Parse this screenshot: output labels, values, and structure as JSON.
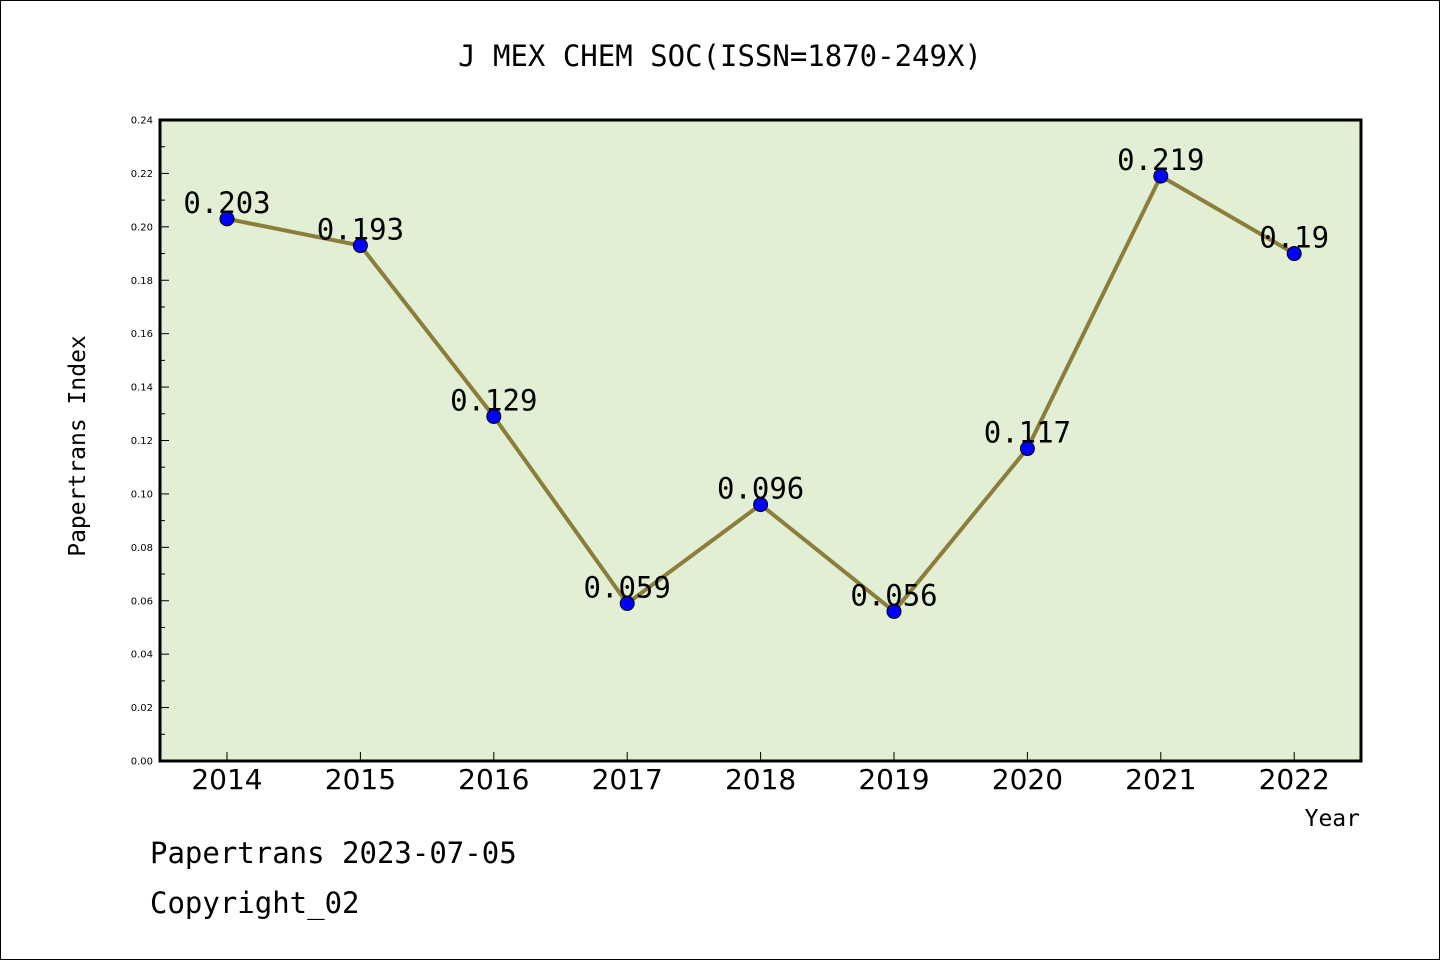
{
  "chart_data": {
    "type": "line",
    "title": "J MEX CHEM SOC(ISSN=1870-249X)",
    "xlabel": "Year",
    "ylabel": "Papertrans Index",
    "categories": [
      "2014",
      "2015",
      "2016",
      "2017",
      "2018",
      "2019",
      "2020",
      "2021",
      "2022"
    ],
    "series": [
      {
        "values": [
          0.203,
          0.193,
          0.129,
          0.059,
          0.096,
          0.056,
          0.117,
          0.219,
          0.19
        ],
        "data_labels": [
          "0.203",
          "0.193",
          "0.129",
          "0.059",
          "0.096",
          "0.056",
          "0.117",
          "0.219",
          "0.19"
        ]
      }
    ],
    "ylim": [
      0,
      0.24
    ],
    "yticks": [
      "0.00",
      "0.02",
      "0.04",
      "0.06",
      "0.08",
      "0.10",
      "0.12",
      "0.14",
      "0.16",
      "0.18",
      "0.20",
      "0.22",
      "0.24"
    ],
    "grid": false,
    "legend": "none",
    "colors": {
      "plot_background": "#e2efd4",
      "line": "#8b7d3a",
      "marker": "#0000ff",
      "axis": "#000000"
    }
  },
  "footer": {
    "date_text": "Papertrans 2023-07-05",
    "copyright_text": "Copyright_02"
  }
}
